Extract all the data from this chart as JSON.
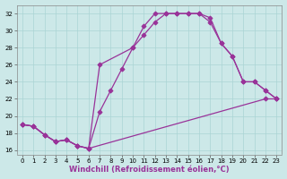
{
  "xlabel": "Windchill (Refroidissement éolien,°C)",
  "xlim": [
    -0.5,
    23.5
  ],
  "ylim": [
    15.5,
    33.0
  ],
  "xticks": [
    0,
    1,
    2,
    3,
    4,
    5,
    6,
    7,
    8,
    9,
    10,
    11,
    12,
    13,
    14,
    15,
    16,
    17,
    18,
    19,
    20,
    21,
    22,
    23
  ],
  "yticks": [
    16,
    18,
    20,
    22,
    24,
    26,
    28,
    30,
    32
  ],
  "bg_color": "#cce8e8",
  "grid_color": "#aad4d4",
  "line_color": "#993399",
  "line1_x": [
    0,
    1,
    2,
    3,
    4,
    5,
    6,
    7,
    10,
    11,
    12,
    13,
    14,
    15,
    16,
    17,
    18,
    19,
    20,
    21,
    22,
    23
  ],
  "line1_y": [
    19.0,
    18.8,
    17.8,
    17.0,
    17.2,
    16.5,
    16.2,
    26.0,
    28.0,
    29.5,
    31.0,
    32.0,
    32.0,
    32.0,
    32.0,
    31.5,
    28.5,
    27.0,
    24.0,
    24.0,
    23.0,
    22.0
  ],
  "line2_x": [
    0,
    1,
    2,
    3,
    4,
    5,
    6,
    7,
    8,
    9,
    10,
    11,
    12,
    13,
    14,
    15,
    16,
    17,
    18,
    19,
    20,
    21,
    22,
    23
  ],
  "line2_y": [
    19.0,
    18.8,
    17.8,
    17.0,
    17.2,
    16.5,
    16.2,
    20.5,
    23.0,
    25.5,
    28.0,
    30.5,
    32.0,
    32.0,
    32.0,
    32.0,
    32.0,
    31.0,
    28.5,
    27.0,
    24.0,
    24.0,
    23.0,
    22.0
  ],
  "line3_x": [
    0,
    1,
    2,
    3,
    4,
    5,
    6,
    22,
    23
  ],
  "line3_y": [
    19.0,
    18.8,
    17.8,
    17.0,
    17.2,
    16.5,
    16.2,
    22.0,
    22.0
  ]
}
